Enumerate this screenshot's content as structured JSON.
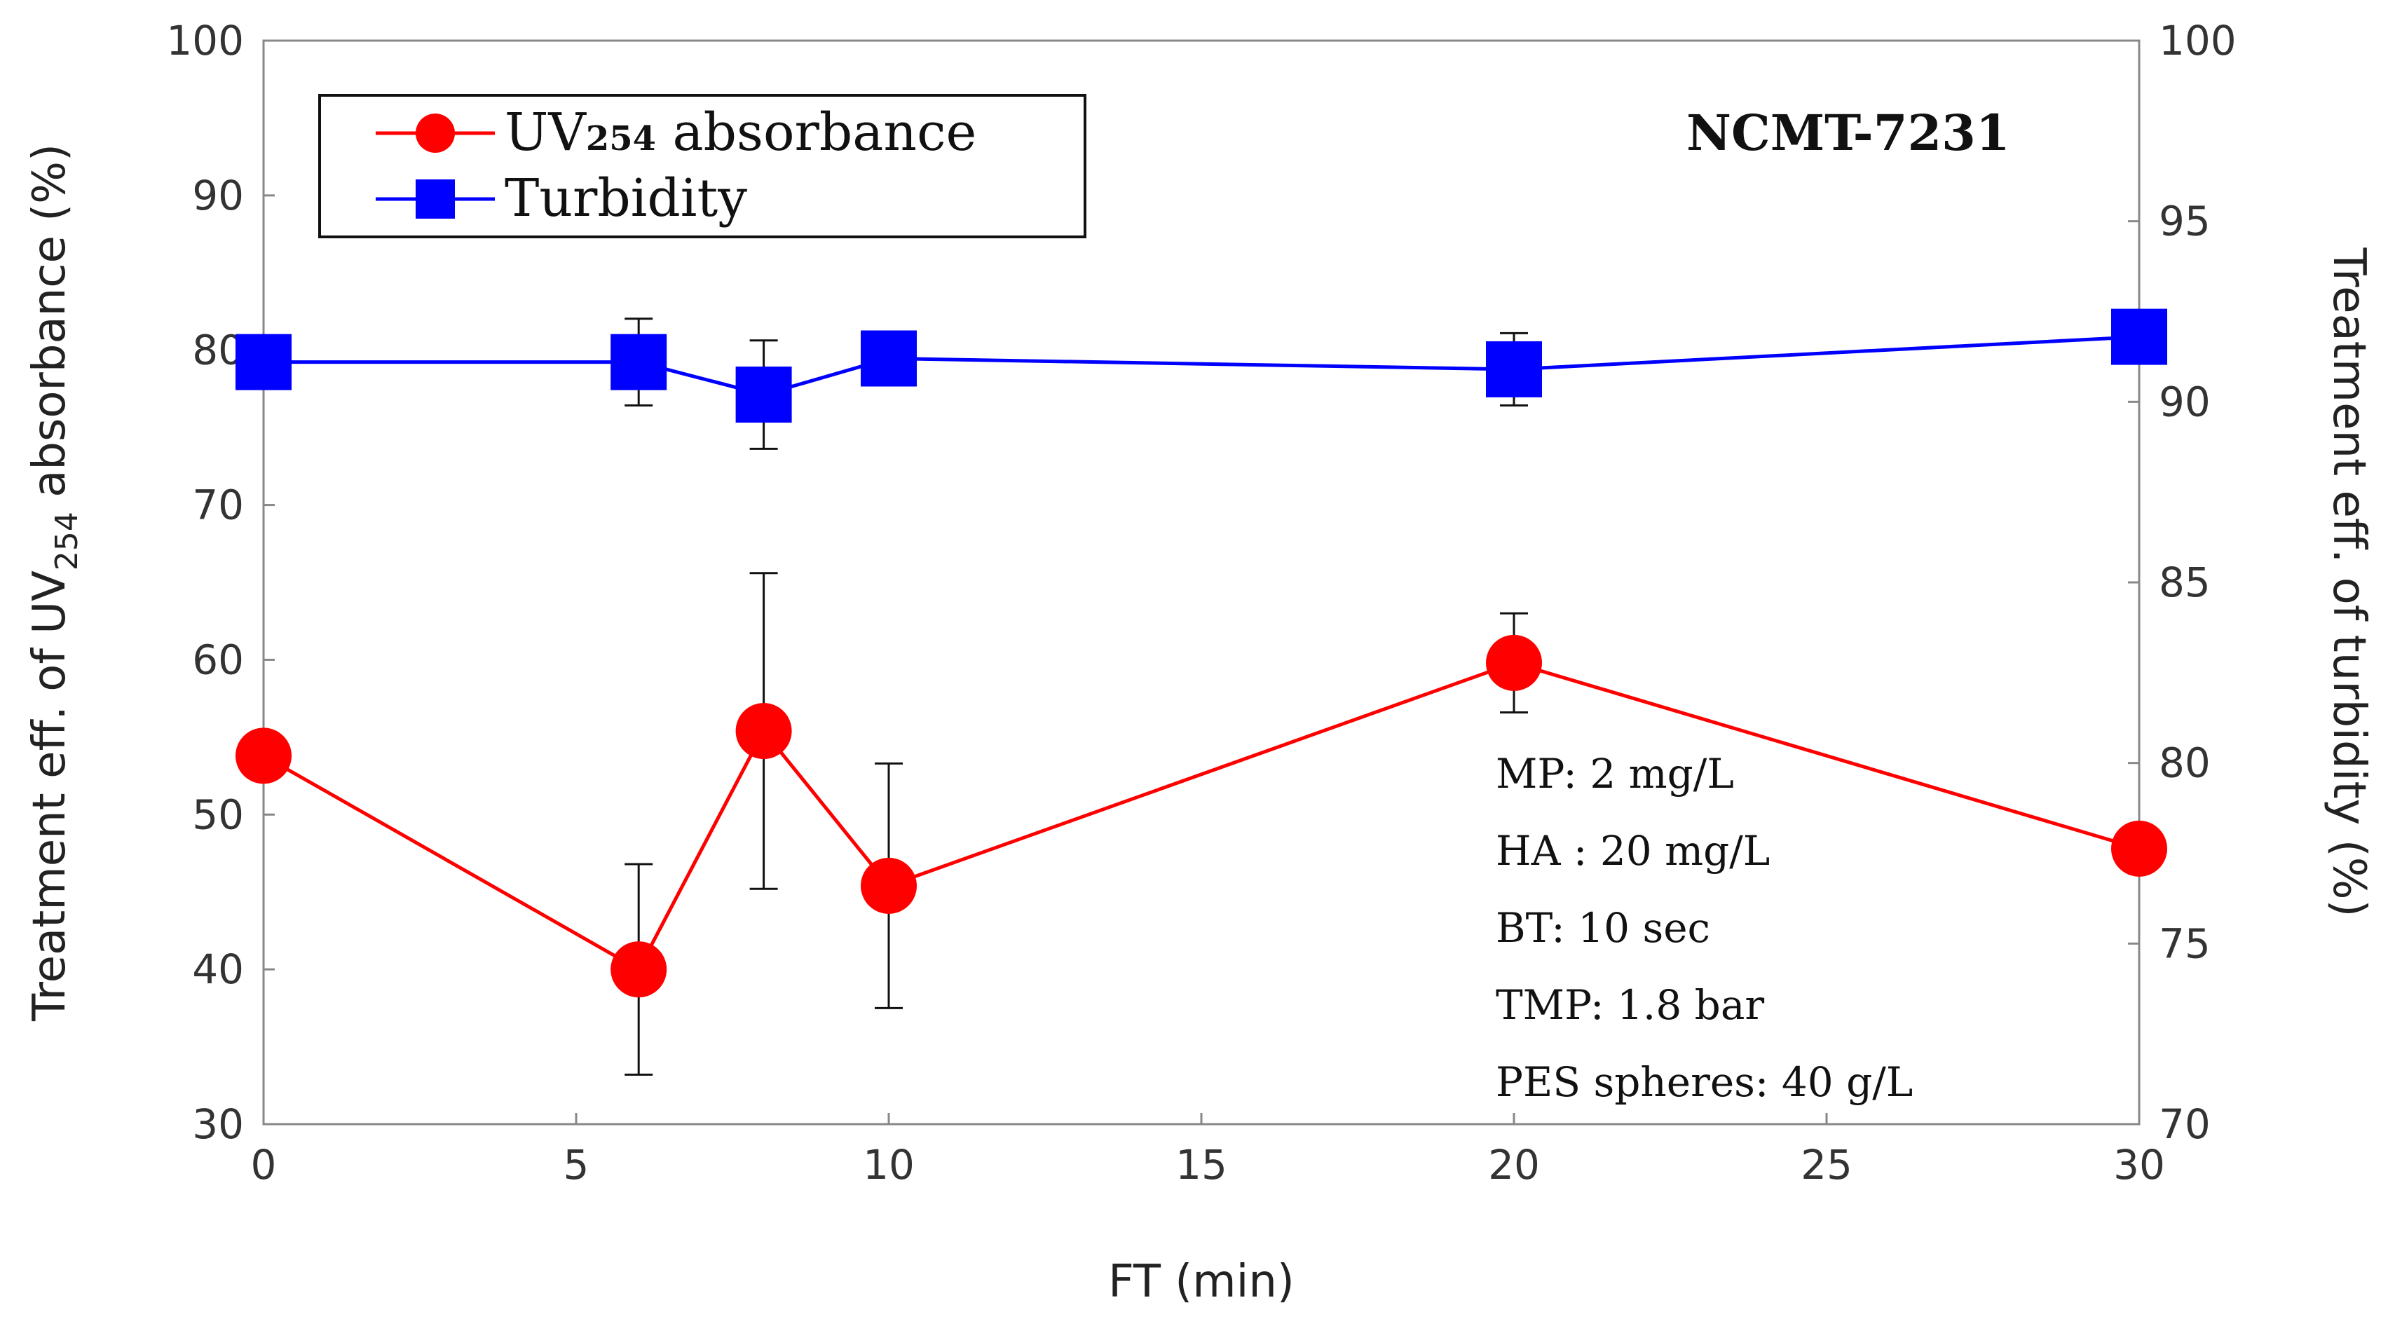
{
  "chart_data": {
    "type": "line",
    "sample_label": "NCMT-7231",
    "xlabel": "FT (min)",
    "ylabel_left": {
      "pre": "Treatment eff. of UV",
      "sub": "254",
      "post": " absorbance (%)"
    },
    "ylabel_right": "Treatment eff. of turbidity (%)",
    "xlim": [
      0,
      30
    ],
    "x_ticks": [
      "0",
      "5",
      "10",
      "15",
      "20",
      "25",
      "30"
    ],
    "x_tick_values": [
      0,
      5,
      10,
      15,
      20,
      25,
      30
    ],
    "ylim_left": [
      30,
      100
    ],
    "y_left_ticks": [
      "30",
      "40",
      "50",
      "60",
      "70",
      "80",
      "90",
      "100"
    ],
    "y_left_tick_values": [
      30,
      40,
      50,
      60,
      70,
      80,
      90,
      100
    ],
    "ylim_right": [
      70,
      100
    ],
    "y_right_ticks": [
      "70",
      "75",
      "80",
      "85",
      "90",
      "95",
      "100"
    ],
    "y_right_tick_values": [
      70,
      75,
      80,
      85,
      90,
      95,
      100
    ],
    "legend": {
      "uv": {
        "pre": "UV",
        "sub": "254",
        "post": " absorbance"
      },
      "turbidity": "Turbidity"
    },
    "series": [
      {
        "name": "UV254 absorbance",
        "axis": "left",
        "color": "#ff0000",
        "marker": "circle",
        "x": [
          0,
          6,
          8,
          10,
          20,
          30
        ],
        "y": [
          53.8,
          40.0,
          55.4,
          45.4,
          59.8,
          47.8
        ],
        "err": [
          null,
          6.8,
          10.2,
          7.9,
          3.2,
          null
        ]
      },
      {
        "name": "Turbidity",
        "axis": "right",
        "color": "#0000ff",
        "marker": "square",
        "x": [
          0,
          6,
          8,
          10,
          20,
          30
        ],
        "y": [
          91.1,
          91.1,
          90.2,
          91.2,
          90.9,
          91.8
        ],
        "err": [
          null,
          1.2,
          1.5,
          null,
          1.0,
          null
        ]
      }
    ],
    "conditions": [
      "MP: 2 mg/L",
      "HA : 20 mg/L",
      "BT: 10 sec",
      "TMP: 1.8 bar",
      "PES spheres: 40 g/L"
    ]
  }
}
